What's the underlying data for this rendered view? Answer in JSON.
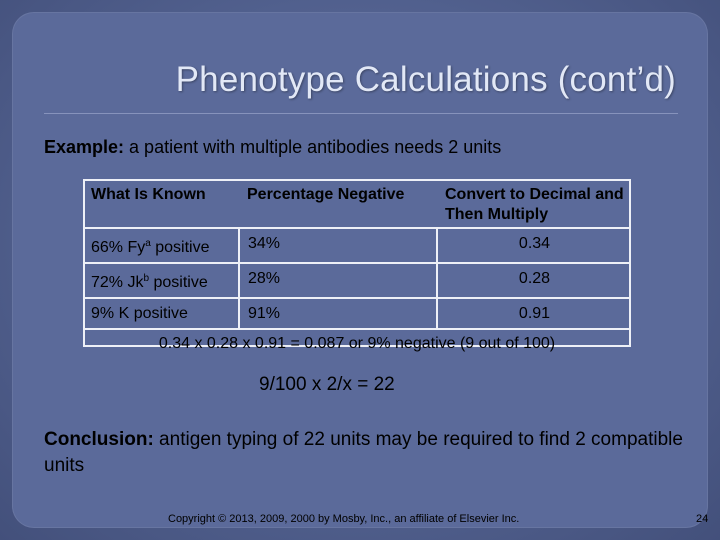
{
  "slide": {
    "title": "Phenotype Calculations (cont’d)",
    "example_bold": "Example:",
    "example_rest": " a patient with multiple antibodies needs 2 units",
    "table": {
      "headers": [
        "What Is Known",
        "Percentage Negative",
        "Convert to Decimal and Then Multiply"
      ],
      "rows": [
        {
          "known_pre": "66% Fy",
          "known_sup": "a",
          "known_post": " positive",
          "pct": "34%",
          "dec": "0.34"
        },
        {
          "known_pre": "72% Jk",
          "known_sup": "b",
          "known_post": " positive",
          "pct": "28%",
          "dec": "0.28"
        },
        {
          "known_pre": "9% K positive",
          "known_sup": "",
          "known_post": "",
          "pct": "91%",
          "dec": "0.91"
        }
      ],
      "summary": "0.34 x 0.28 x 0.91 = 0.087 or 9% negative (9 out of 100)"
    },
    "equation": "9/100 x 2/x = 22",
    "conclusion_bold": "Conclusion:",
    "conclusion_rest": " antigen typing of 22 units may be required to find 2 compatible units",
    "copyright": "Copyright © 2013, 2009, 2000 by Mosby, Inc., an affiliate of Elsevier Inc.",
    "page_number": "24"
  },
  "colors": {
    "background": "#4d5e92",
    "title_text": "#e2e8f6",
    "table_lines": "#eef0f7"
  }
}
